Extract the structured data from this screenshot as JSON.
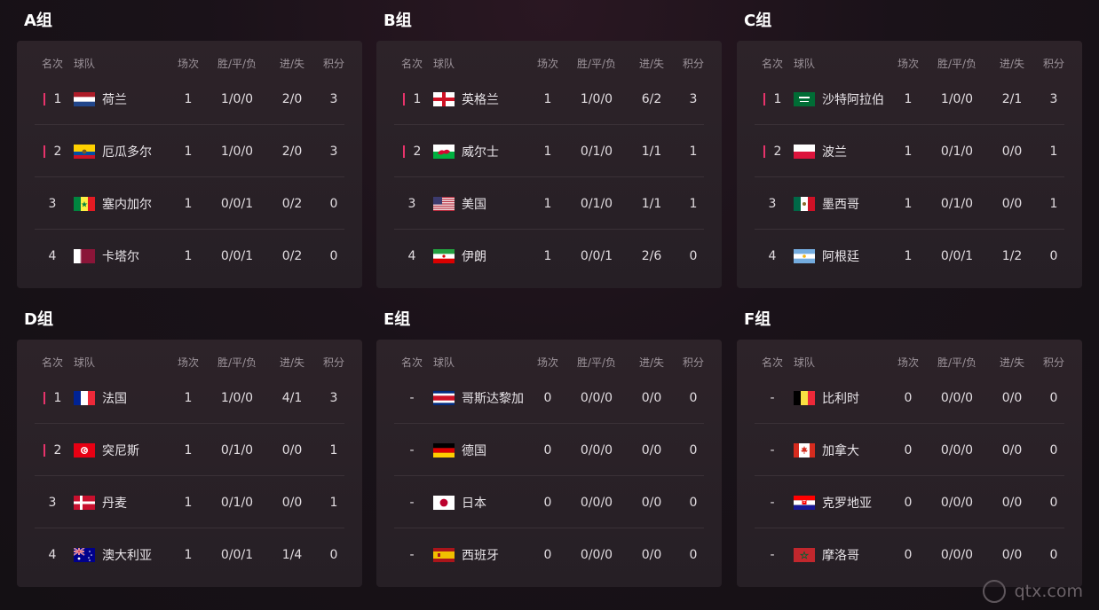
{
  "headers": {
    "rank": "名次",
    "team": "球队",
    "played": "场次",
    "wdl": "胜/平/负",
    "gd": "进/失",
    "pts": "积分"
  },
  "groups": [
    {
      "title": "A组",
      "rows": [
        {
          "rank": "1",
          "qualified": true,
          "flag": "netherlands",
          "team": "荷兰",
          "played": "1",
          "wdl": "1/0/0",
          "gd": "2/0",
          "pts": "3"
        },
        {
          "rank": "2",
          "qualified": true,
          "flag": "ecuador",
          "team": "厄瓜多尔",
          "played": "1",
          "wdl": "1/0/0",
          "gd": "2/0",
          "pts": "3"
        },
        {
          "rank": "3",
          "qualified": false,
          "flag": "senegal",
          "team": "塞内加尔",
          "played": "1",
          "wdl": "0/0/1",
          "gd": "0/2",
          "pts": "0"
        },
        {
          "rank": "4",
          "qualified": false,
          "flag": "qatar",
          "team": "卡塔尔",
          "played": "1",
          "wdl": "0/0/1",
          "gd": "0/2",
          "pts": "0"
        }
      ]
    },
    {
      "title": "B组",
      "rows": [
        {
          "rank": "1",
          "qualified": true,
          "flag": "england",
          "team": "英格兰",
          "played": "1",
          "wdl": "1/0/0",
          "gd": "6/2",
          "pts": "3"
        },
        {
          "rank": "2",
          "qualified": true,
          "flag": "wales",
          "team": "威尔士",
          "played": "1",
          "wdl": "0/1/0",
          "gd": "1/1",
          "pts": "1"
        },
        {
          "rank": "3",
          "qualified": false,
          "flag": "usa",
          "team": "美国",
          "played": "1",
          "wdl": "0/1/0",
          "gd": "1/1",
          "pts": "1"
        },
        {
          "rank": "4",
          "qualified": false,
          "flag": "iran",
          "team": "伊朗",
          "played": "1",
          "wdl": "0/0/1",
          "gd": "2/6",
          "pts": "0"
        }
      ]
    },
    {
      "title": "C组",
      "rows": [
        {
          "rank": "1",
          "qualified": true,
          "flag": "saudi",
          "team": "沙特阿拉伯",
          "played": "1",
          "wdl": "1/0/0",
          "gd": "2/1",
          "pts": "3"
        },
        {
          "rank": "2",
          "qualified": true,
          "flag": "poland",
          "team": "波兰",
          "played": "1",
          "wdl": "0/1/0",
          "gd": "0/0",
          "pts": "1"
        },
        {
          "rank": "3",
          "qualified": false,
          "flag": "mexico",
          "team": "墨西哥",
          "played": "1",
          "wdl": "0/1/0",
          "gd": "0/0",
          "pts": "1"
        },
        {
          "rank": "4",
          "qualified": false,
          "flag": "argentina",
          "team": "阿根廷",
          "played": "1",
          "wdl": "0/0/1",
          "gd": "1/2",
          "pts": "0"
        }
      ]
    },
    {
      "title": "D组",
      "rows": [
        {
          "rank": "1",
          "qualified": true,
          "flag": "france",
          "team": "法国",
          "played": "1",
          "wdl": "1/0/0",
          "gd": "4/1",
          "pts": "3"
        },
        {
          "rank": "2",
          "qualified": true,
          "flag": "tunisia",
          "team": "突尼斯",
          "played": "1",
          "wdl": "0/1/0",
          "gd": "0/0",
          "pts": "1"
        },
        {
          "rank": "3",
          "qualified": false,
          "flag": "denmark",
          "team": "丹麦",
          "played": "1",
          "wdl": "0/1/0",
          "gd": "0/0",
          "pts": "1"
        },
        {
          "rank": "4",
          "qualified": false,
          "flag": "australia",
          "team": "澳大利亚",
          "played": "1",
          "wdl": "0/0/1",
          "gd": "1/4",
          "pts": "0"
        }
      ]
    },
    {
      "title": "E组",
      "rows": [
        {
          "rank": "-",
          "qualified": false,
          "flag": "costarica",
          "team": "哥斯达黎加",
          "played": "0",
          "wdl": "0/0/0",
          "gd": "0/0",
          "pts": "0"
        },
        {
          "rank": "-",
          "qualified": false,
          "flag": "germany",
          "team": "德国",
          "played": "0",
          "wdl": "0/0/0",
          "gd": "0/0",
          "pts": "0"
        },
        {
          "rank": "-",
          "qualified": false,
          "flag": "japan",
          "team": "日本",
          "played": "0",
          "wdl": "0/0/0",
          "gd": "0/0",
          "pts": "0"
        },
        {
          "rank": "-",
          "qualified": false,
          "flag": "spain",
          "team": "西班牙",
          "played": "0",
          "wdl": "0/0/0",
          "gd": "0/0",
          "pts": "0"
        }
      ]
    },
    {
      "title": "F组",
      "rows": [
        {
          "rank": "-",
          "qualified": false,
          "flag": "belgium",
          "team": "比利时",
          "played": "0",
          "wdl": "0/0/0",
          "gd": "0/0",
          "pts": "0"
        },
        {
          "rank": "-",
          "qualified": false,
          "flag": "canada",
          "team": "加拿大",
          "played": "0",
          "wdl": "0/0/0",
          "gd": "0/0",
          "pts": "0"
        },
        {
          "rank": "-",
          "qualified": false,
          "flag": "croatia",
          "team": "克罗地亚",
          "played": "0",
          "wdl": "0/0/0",
          "gd": "0/0",
          "pts": "0"
        },
        {
          "rank": "-",
          "qualified": false,
          "flag": "morocco",
          "team": "摩洛哥",
          "played": "0",
          "wdl": "0/0/0",
          "gd": "0/0",
          "pts": "0"
        }
      ]
    }
  ],
  "watermark": "qtx.com",
  "colors": {
    "qualified_marker": "#e8336b"
  }
}
